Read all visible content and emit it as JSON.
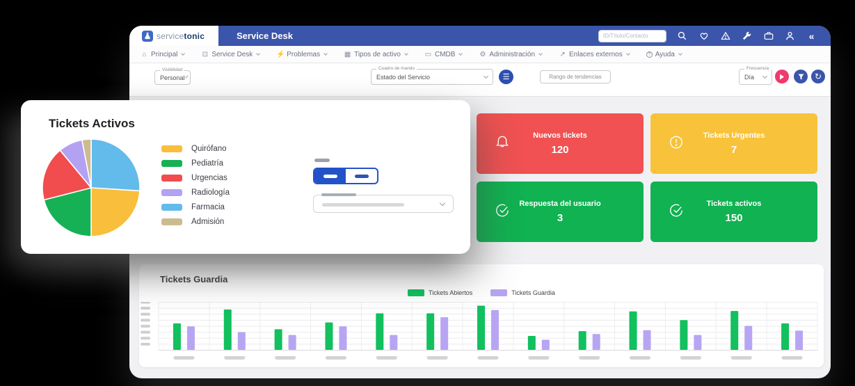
{
  "header": {
    "brand_light": "service",
    "brand_bold": "tonic",
    "app_title": "Service Desk",
    "search_placeholder": "ID/Título/Contacto"
  },
  "nav": {
    "items": [
      {
        "icon": "home",
        "label": "Principal"
      },
      {
        "icon": "screen",
        "label": "Service Desk"
      },
      {
        "icon": "bolt",
        "label": "Problemas"
      },
      {
        "icon": "grid",
        "label": "Tipos de activo"
      },
      {
        "icon": "monitor",
        "label": "CMDB"
      },
      {
        "icon": "gear",
        "label": "Administración"
      },
      {
        "icon": "external-link",
        "label": "Enlaces externos"
      },
      {
        "icon": "help",
        "label": "Ayuda"
      }
    ]
  },
  "filters": {
    "visibility": {
      "label": "Visibilidad",
      "value": "Personal"
    },
    "dashboard": {
      "label": "Cuadro de mando",
      "value": "Estado del Servicio"
    },
    "trend_range_placeholder": "Rango de tendencias",
    "frequency": {
      "label": "Frecuencia",
      "value": "Día"
    },
    "buttons": {
      "play_color": "#f0396d",
      "filter_color": "#3a55a9",
      "refresh_color": "#3a55a9",
      "dashboard_btn_color": "#2b4fb0"
    }
  },
  "kpis": [
    {
      "icon": "bell",
      "label": "Nuevos tickets",
      "value": "120",
      "color": "#f15152"
    },
    {
      "icon": "alert-circle",
      "label": "Tickets Urgentes",
      "value": "7",
      "color": "#f8c33b"
    },
    {
      "icon": "check-circle",
      "label": "Respuesta del usuario",
      "value": "3",
      "color": "#10b251"
    },
    {
      "icon": "check-circle",
      "label": "Tickets activos",
      "value": "150",
      "color": "#10b251"
    }
  ],
  "overlay": {
    "title": "Tickets Activos"
  },
  "guardia": {
    "title": "Tickets Guardia"
  },
  "chart_data": [
    {
      "type": "pie",
      "title": "Tickets Activos",
      "labels": [
        "Quirófano",
        "Pediatría",
        "Urgencias",
        "Radiología",
        "Farmacia",
        "Admisión"
      ],
      "values": [
        24,
        21,
        18,
        8,
        26,
        3
      ],
      "colors": [
        "#f9be3b",
        "#16b155",
        "#f14c4e",
        "#b3a1f1",
        "#62bbea",
        "#cdbb90"
      ],
      "draw_order_clockwise_from_top": [
        4,
        0,
        1,
        2,
        3,
        5
      ],
      "legend_position": "right",
      "values_are_percent_estimated": true
    },
    {
      "type": "bar",
      "title": "Tickets Guardia",
      "categories": [
        "",
        "",
        "",
        "",
        "",
        "",
        "",
        "",
        "",
        "",
        "",
        "",
        ""
      ],
      "series": [
        {
          "name": "Tickets Abiertos",
          "color": "#12c05e",
          "values": [
            55,
            84,
            43,
            57,
            76,
            76,
            92,
            29,
            39,
            80,
            62,
            81,
            55
          ]
        },
        {
          "name": "Tickets Guardia",
          "color": "#b7a5f3",
          "values": [
            49,
            37,
            31,
            49,
            31,
            68,
            83,
            21,
            33,
            41,
            31,
            50,
            40
          ]
        }
      ],
      "ylim": [
        0,
        100
      ],
      "grid": true,
      "legend_position": "top-center",
      "axis_tick_labels": "redacted-gray-dashes",
      "values_estimated": true
    }
  ]
}
